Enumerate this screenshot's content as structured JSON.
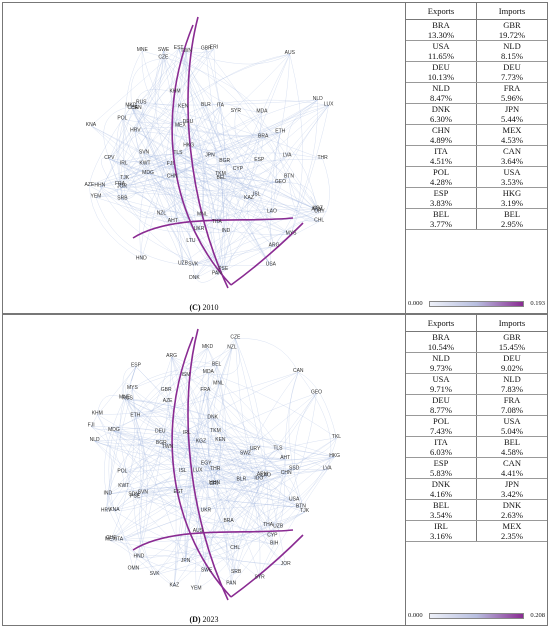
{
  "panels": [
    {
      "caption_label": "(C)",
      "caption_year": "2010",
      "headers": {
        "exports": "Exports",
        "imports": "Imports"
      },
      "rows": [
        {
          "exp_code": "BRA",
          "exp_pct": "13.30%",
          "imp_code": "GBR",
          "imp_pct": "19.72%"
        },
        {
          "exp_code": "USA",
          "exp_pct": "11.65%",
          "imp_code": "NLD",
          "imp_pct": "8.15%"
        },
        {
          "exp_code": "DEU",
          "exp_pct": "10.13%",
          "imp_code": "DEU",
          "imp_pct": "7.73%"
        },
        {
          "exp_code": "NLD",
          "exp_pct": "8.47%",
          "imp_code": "FRA",
          "imp_pct": "5.96%"
        },
        {
          "exp_code": "DNK",
          "exp_pct": "6.30%",
          "imp_code": "JPN",
          "imp_pct": "5.44%"
        },
        {
          "exp_code": "CHN",
          "exp_pct": "4.89%",
          "imp_code": "MEX",
          "imp_pct": "4.53%"
        },
        {
          "exp_code": "ITA",
          "exp_pct": "4.51%",
          "imp_code": "CAN",
          "imp_pct": "3.64%"
        },
        {
          "exp_code": "POL",
          "exp_pct": "4.28%",
          "imp_code": "USA",
          "imp_pct": "3.53%"
        },
        {
          "exp_code": "ESP",
          "exp_pct": "3.83%",
          "imp_code": "HKG",
          "imp_pct": "3.19%"
        },
        {
          "exp_code": "BEL",
          "exp_pct": "3.77%",
          "imp_code": "BEL",
          "imp_pct": "2.95%"
        }
      ],
      "legend": {
        "min": "0.000",
        "max": "0.193"
      },
      "labels": {
        "big": [
          "CPV",
          "ISL",
          "FRA",
          "ARM",
          "CAN",
          "UZB",
          "DEU",
          "SVN",
          "KEN",
          "POL",
          "BEL",
          "LUX",
          "LAO",
          "BRA",
          "SRB",
          "KHM",
          "USA",
          "MDG",
          "HRV",
          "ARG",
          "NZL",
          "URY",
          "PAN",
          "KWT",
          "RUS",
          "ERI",
          "KAZ",
          "FJI",
          "BTN",
          "CZE",
          "ETH",
          "JOR",
          "YEM",
          "TJK",
          "MNL",
          "BLR",
          "SVK",
          "AUS",
          "NLD",
          "GBR",
          "HKG",
          "AHT",
          "IND",
          "SWE",
          "DNK",
          "LVA",
          "CHE",
          "CHL",
          "AZE",
          "MKD",
          "MYS",
          "MDA",
          "ESP",
          "EST",
          "MNE",
          "PSE",
          "TKM",
          "BGR",
          "KNA",
          "SYR",
          "TLS",
          "LTU",
          "GEO",
          "THA",
          "ITA",
          "JPN",
          "MEX",
          "CHN",
          "IRL",
          "THR",
          "HHN",
          "HND",
          "TWN",
          "UKR",
          "KGZ",
          "CYP"
        ]
      }
    },
    {
      "caption_label": "(D)",
      "caption_year": "2023",
      "headers": {
        "exports": "Exports",
        "imports": "Imports"
      },
      "rows": [
        {
          "exp_code": "BRA",
          "exp_pct": "10.54%",
          "imp_code": "GBR",
          "imp_pct": "15.45%"
        },
        {
          "exp_code": "NLD",
          "exp_pct": "9.73%",
          "imp_code": "DEU",
          "imp_pct": "9.02%"
        },
        {
          "exp_code": "USA",
          "exp_pct": "9.71%",
          "imp_code": "NLD",
          "imp_pct": "7.83%"
        },
        {
          "exp_code": "DEU",
          "exp_pct": "8.77%",
          "imp_code": "FRA",
          "imp_pct": "7.08%"
        },
        {
          "exp_code": "POL",
          "exp_pct": "7.43%",
          "imp_code": "USA",
          "imp_pct": "5.04%"
        },
        {
          "exp_code": "ITA",
          "exp_pct": "6.03%",
          "imp_code": "BEL",
          "imp_pct": "4.58%"
        },
        {
          "exp_code": "ESP",
          "exp_pct": "5.83%",
          "imp_code": "CAN",
          "imp_pct": "4.41%"
        },
        {
          "exp_code": "DNK",
          "exp_pct": "4.16%",
          "imp_code": "JPN",
          "imp_pct": "3.42%"
        },
        {
          "exp_code": "BEL",
          "exp_pct": "3.54%",
          "imp_code": "DNK",
          "imp_pct": "2.63%"
        },
        {
          "exp_code": "IRL",
          "exp_pct": "3.16%",
          "imp_code": "MEX",
          "imp_pct": "2.35%"
        }
      ],
      "legend": {
        "min": "0.000",
        "max": "0.208"
      },
      "labels": {
        "big": [
          "SSD",
          "ISL",
          "FRA",
          "SWZ",
          "ARM",
          "CAN",
          "UZB",
          "DEU",
          "SVN",
          "KEN",
          "POL",
          "BEL",
          "LUX",
          "LAO",
          "BRA",
          "SRB",
          "KHM",
          "USA",
          "MDG",
          "HRV",
          "ARG",
          "NZL",
          "URY",
          "SDN",
          "PAN",
          "KWT",
          "RUS",
          "ERI",
          "KAZ",
          "FJI",
          "BTN",
          "CZE",
          "ETH",
          "JOR",
          "YEM",
          "TJK",
          "MNL",
          "BLR",
          "SVK",
          "AUS",
          "NLD",
          "GBR",
          "HKG",
          "AHT",
          "IND",
          "SWE",
          "DNK",
          "LVA",
          "CHE",
          "CHL",
          "AZE",
          "MKD",
          "MYS",
          "MDA",
          "ESP",
          "EST",
          "MNE",
          "PSE",
          "TKM",
          "BGR",
          "KNA",
          "SYR",
          "TLS",
          "TKL",
          "GEO",
          "THA",
          "ITA",
          "JPN",
          "MEX",
          "CHN",
          "IRL",
          "THR",
          "HHN",
          "HND",
          "TWN",
          "UKR",
          "KGZ",
          "CYP",
          "EGY",
          "IDO",
          "BIH",
          "OMN",
          "ISM"
        ]
      }
    }
  ]
}
